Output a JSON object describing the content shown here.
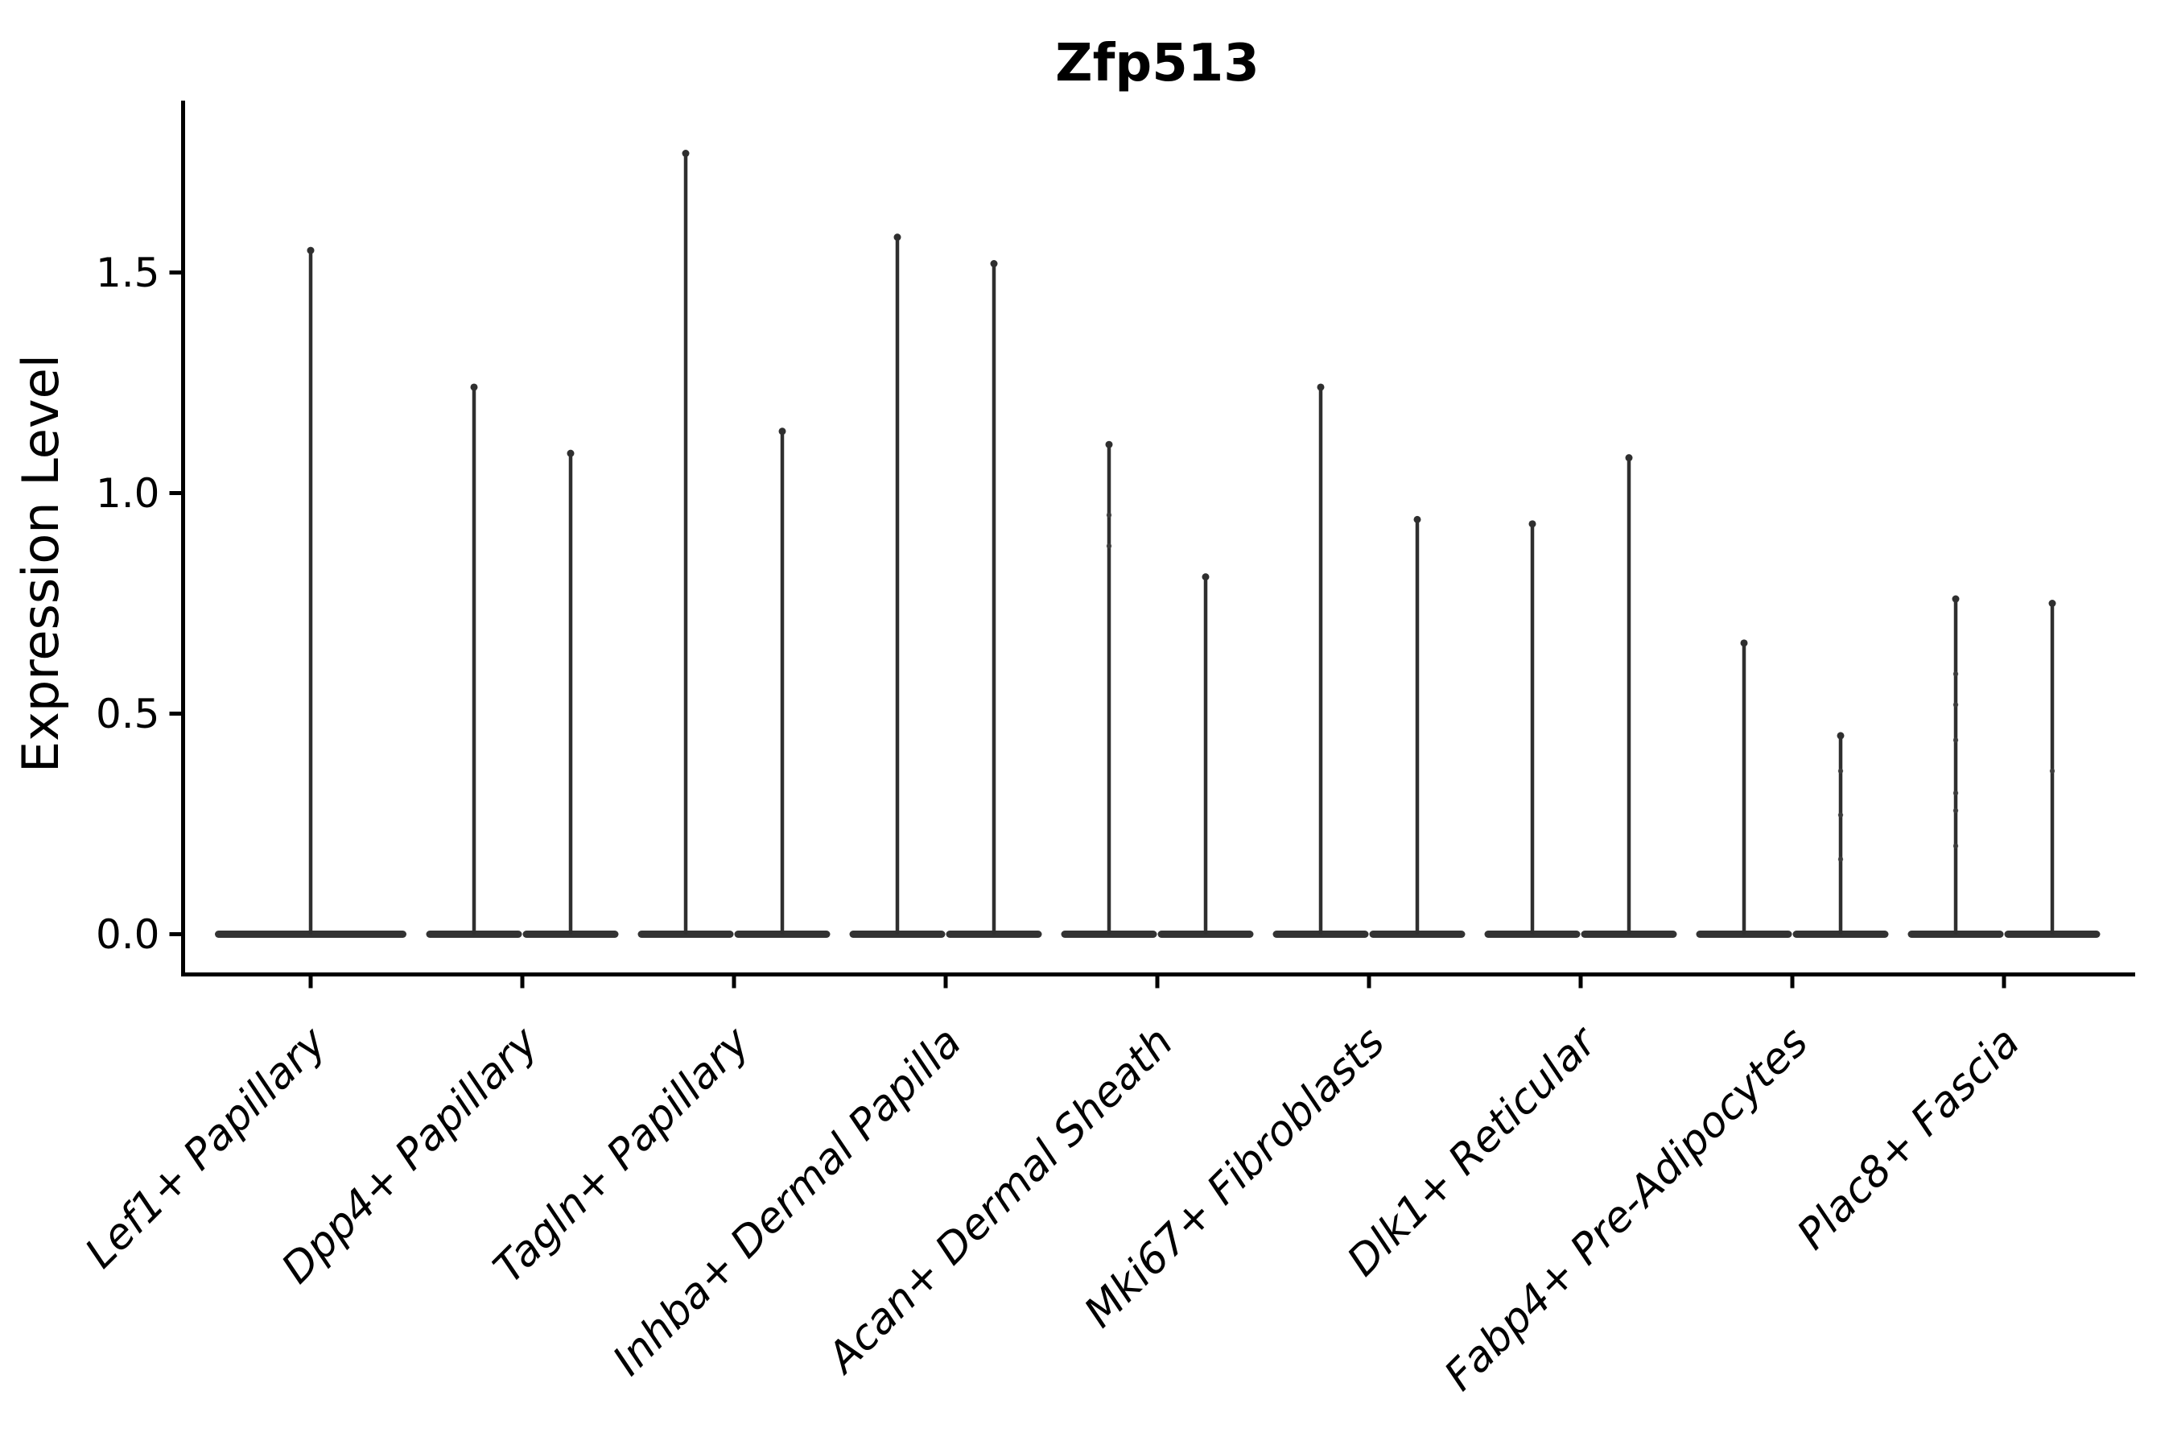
{
  "chart_data": {
    "type": "violin",
    "title": "Zfp513",
    "xlabel": "",
    "ylabel": "Expression Level",
    "ylim": [
      0,
      1.85
    ],
    "grid": false,
    "legend": "none",
    "style_note": "Seurat-style split violin plot; near-zero-width violins appear as flat bases at 0 with thin spikes up to the maximum expression value; dots are individual cell expression points visible along some spikes",
    "y_ticks": [
      {
        "label": "0.0",
        "value": 0.0
      },
      {
        "label": "0.5",
        "value": 0.5
      },
      {
        "label": "1.0",
        "value": 1.0
      },
      {
        "label": "1.5",
        "value": 1.5
      }
    ],
    "categories": [
      {
        "label": "Lef1+ Papillary",
        "violins": [
          {
            "min": 0,
            "max": 1.55,
            "dots": []
          }
        ]
      },
      {
        "label": "Dpp4+ Papillary",
        "violins": [
          {
            "min": 0,
            "max": 1.24,
            "dots": []
          },
          {
            "min": 0,
            "max": 1.09,
            "dots": []
          }
        ]
      },
      {
        "label": "Tagln+ Papillary",
        "violins": [
          {
            "min": 0,
            "max": 1.77,
            "dots": []
          },
          {
            "min": 0,
            "max": 1.14,
            "dots": []
          }
        ]
      },
      {
        "label": "Inhba+ Dermal Papilla",
        "violins": [
          {
            "min": 0,
            "max": 1.58,
            "dots": []
          },
          {
            "min": 0,
            "max": 1.52,
            "dots": []
          }
        ]
      },
      {
        "label": "Acan+ Dermal Sheath",
        "violins": [
          {
            "min": 0,
            "max": 1.11,
            "dots": [
              0.95,
              0.88
            ]
          },
          {
            "min": 0,
            "max": 0.81,
            "dots": []
          }
        ]
      },
      {
        "label": "Mki67+ Fibroblasts",
        "violins": [
          {
            "min": 0,
            "max": 1.24,
            "dots": []
          },
          {
            "min": 0,
            "max": 0.94,
            "dots": []
          }
        ]
      },
      {
        "label": "Dlk1+ Reticular",
        "violins": [
          {
            "min": 0,
            "max": 0.93,
            "dots": []
          },
          {
            "min": 0,
            "max": 1.08,
            "dots": []
          }
        ]
      },
      {
        "label": "Fabp4+ Pre-Adipocytes",
        "violins": [
          {
            "min": 0,
            "max": 0.66,
            "dots": []
          },
          {
            "min": 0,
            "max": 0.45,
            "dots": [
              0.37,
              0.27,
              0.17
            ]
          }
        ]
      },
      {
        "label": "Plac8+ Fascia",
        "violins": [
          {
            "min": 0,
            "max": 0.76,
            "dots": [
              0.59,
              0.52,
              0.44,
              0.32,
              0.28,
              0.2
            ]
          },
          {
            "min": 0,
            "max": 0.75,
            "dots": [
              0.37
            ]
          }
        ]
      }
    ],
    "colors": {
      "violin_stroke": "#2f2f2f",
      "violin_base_fill": "#333333",
      "axis": "#000000",
      "text": "#000000",
      "background": "#ffffff"
    }
  }
}
